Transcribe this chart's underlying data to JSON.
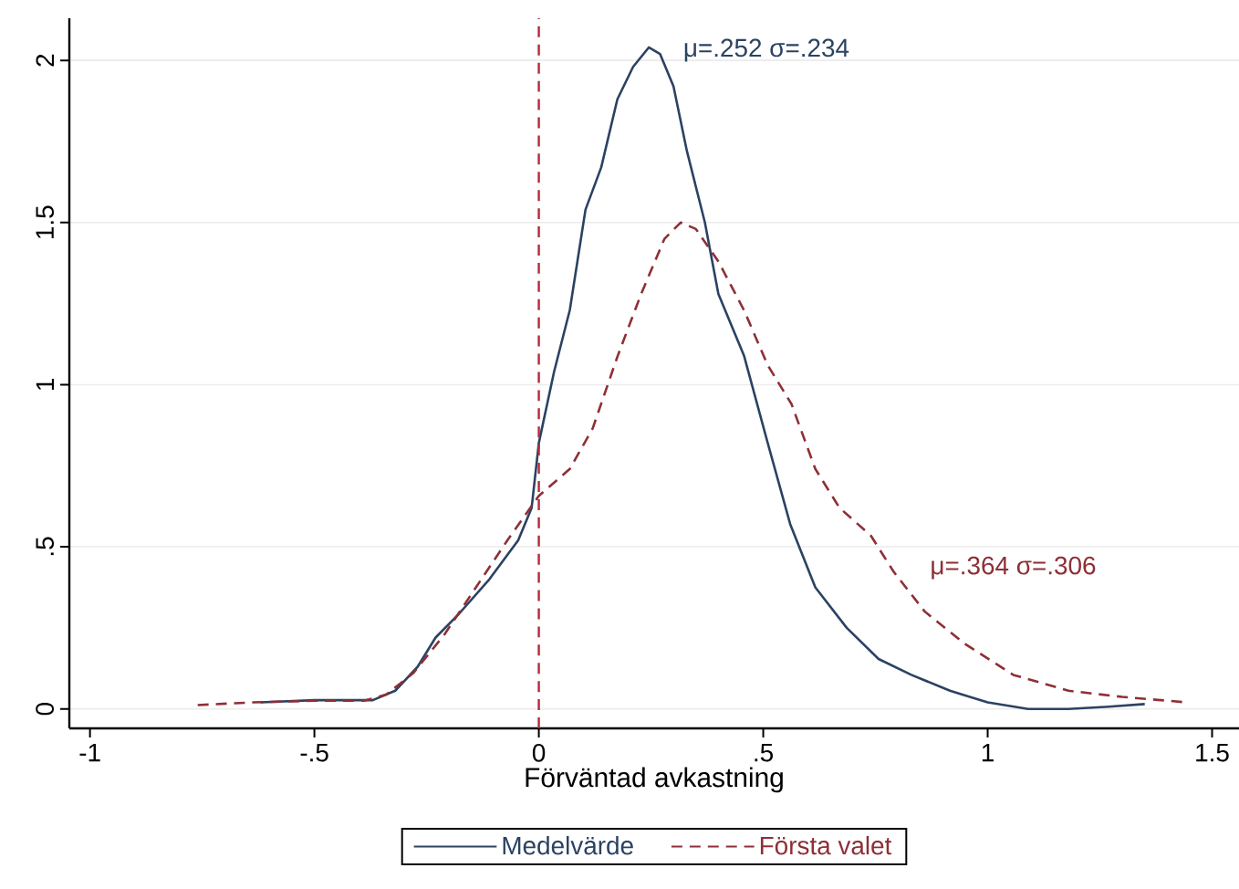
{
  "chart_data": {
    "type": "line",
    "xlabel": "Förväntad avkastning",
    "xlim": [
      -1.046,
      1.56
    ],
    "ylim": [
      -0.06,
      2.13
    ],
    "xticks": [
      -1,
      {
        "value": -0.5,
        "label": "-.5"
      },
      0,
      {
        "value": 0.5,
        "label": ".5"
      },
      1,
      1.5
    ],
    "yticks": [
      0,
      {
        "value": 0.5,
        "label": ".5"
      },
      1,
      1.5,
      2
    ],
    "grid": "y",
    "legend": "bottom",
    "marker": "none",
    "series": [
      {
        "name": "Medelvärde",
        "color": "#2b4262",
        "line_style": "solid",
        "x": [
          -0.62,
          -0.5,
          -0.37,
          -0.32,
          -0.27,
          -0.23,
          -0.18,
          -0.11,
          -0.046,
          -0.016,
          0,
          0.034,
          0.069,
          0.104,
          0.139,
          0.175,
          0.21,
          0.245,
          0.27,
          0.3,
          0.33,
          0.37,
          0.4,
          0.457,
          0.51,
          0.56,
          0.616,
          0.686,
          0.757,
          0.83,
          0.916,
          1.0,
          1.09,
          1.18,
          1.27,
          1.35
        ],
        "values": [
          0.02,
          0.027,
          0.027,
          0.056,
          0.13,
          0.22,
          0.29,
          0.4,
          0.52,
          0.62,
          0.82,
          1.04,
          1.23,
          1.54,
          1.67,
          1.88,
          1.98,
          2.04,
          2.02,
          1.92,
          1.72,
          1.5,
          1.28,
          1.09,
          0.82,
          0.57,
          0.375,
          0.25,
          0.154,
          0.105,
          0.056,
          0.02,
          0.0,
          0.0,
          0.007,
          0.015
        ]
      },
      {
        "name": "Första valet",
        "color": "#8e2f36",
        "line_style": "dashed",
        "x": [
          -0.76,
          -0.64,
          -0.5,
          -0.39,
          -0.34,
          -0.28,
          -0.21,
          -0.14,
          -0.07,
          0,
          0.069,
          0.12,
          0.175,
          0.228,
          0.28,
          0.316,
          0.35,
          0.4,
          0.457,
          0.51,
          0.563,
          0.616,
          0.67,
          0.74,
          0.79,
          0.86,
          0.95,
          1.057,
          1.18,
          1.3,
          1.445
        ],
        "values": [
          0.012,
          0.02,
          0.025,
          0.025,
          0.044,
          0.11,
          0.23,
          0.375,
          0.52,
          0.657,
          0.74,
          0.865,
          1.086,
          1.28,
          1.45,
          1.5,
          1.48,
          1.38,
          1.23,
          1.06,
          0.94,
          0.74,
          0.62,
          0.534,
          0.424,
          0.3,
          0.2,
          0.105,
          0.056,
          0.037,
          0.02
        ]
      }
    ],
    "ref_lines": [
      {
        "axis": "x",
        "value": 0,
        "color": "#b5283a",
        "line_style": "dashed"
      }
    ],
    "annotations": [
      "μ=.252 σ=.234",
      "μ=.364 σ=.306"
    ]
  }
}
